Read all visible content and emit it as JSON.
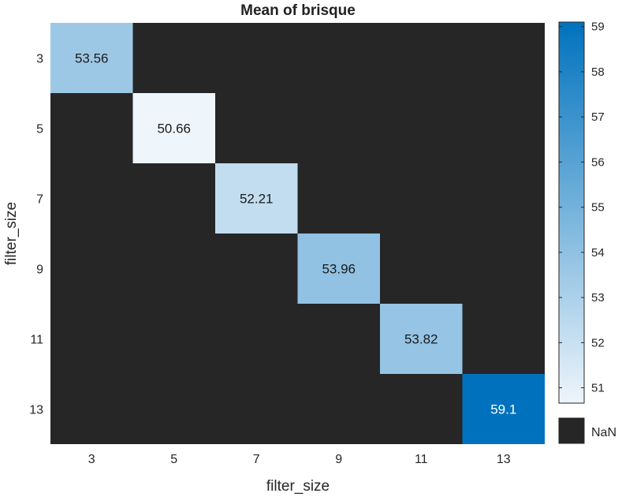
{
  "chart_data": {
    "type": "heatmap",
    "title": "Mean of brisque",
    "xlabel": "filter_size",
    "ylabel": "filter_size",
    "x_categories": [
      "3",
      "5",
      "7",
      "9",
      "11",
      "13"
    ],
    "y_categories": [
      "3",
      "5",
      "7",
      "9",
      "11",
      "13"
    ],
    "values": [
      [
        53.56,
        null,
        null,
        null,
        null,
        null
      ],
      [
        null,
        50.66,
        null,
        null,
        null,
        null
      ],
      [
        null,
        null,
        52.21,
        null,
        null,
        null
      ],
      [
        null,
        null,
        null,
        53.96,
        null,
        null
      ],
      [
        null,
        null,
        null,
        null,
        53.82,
        null
      ],
      [
        null,
        null,
        null,
        null,
        null,
        59.1
      ]
    ],
    "cell_labels": [
      [
        "53.56",
        "",
        "",
        "",
        "",
        ""
      ],
      [
        "",
        "50.66",
        "",
        "",
        "",
        ""
      ],
      [
        "",
        "",
        "52.21",
        "",
        "",
        ""
      ],
      [
        "",
        "",
        "",
        "53.96",
        "",
        ""
      ],
      [
        "",
        "",
        "",
        "",
        "53.82",
        ""
      ],
      [
        "",
        "",
        "",
        "",
        "",
        "59.1"
      ]
    ],
    "colorbar": {
      "min": 50.66,
      "max": 59.1,
      "ticks": [
        "51",
        "52",
        "53",
        "54",
        "55",
        "56",
        "57",
        "58",
        "59"
      ],
      "color_low": "#eef5fb",
      "color_high": "#0072bd"
    },
    "missing_label": "NaN",
    "missing_color": "#262626"
  }
}
